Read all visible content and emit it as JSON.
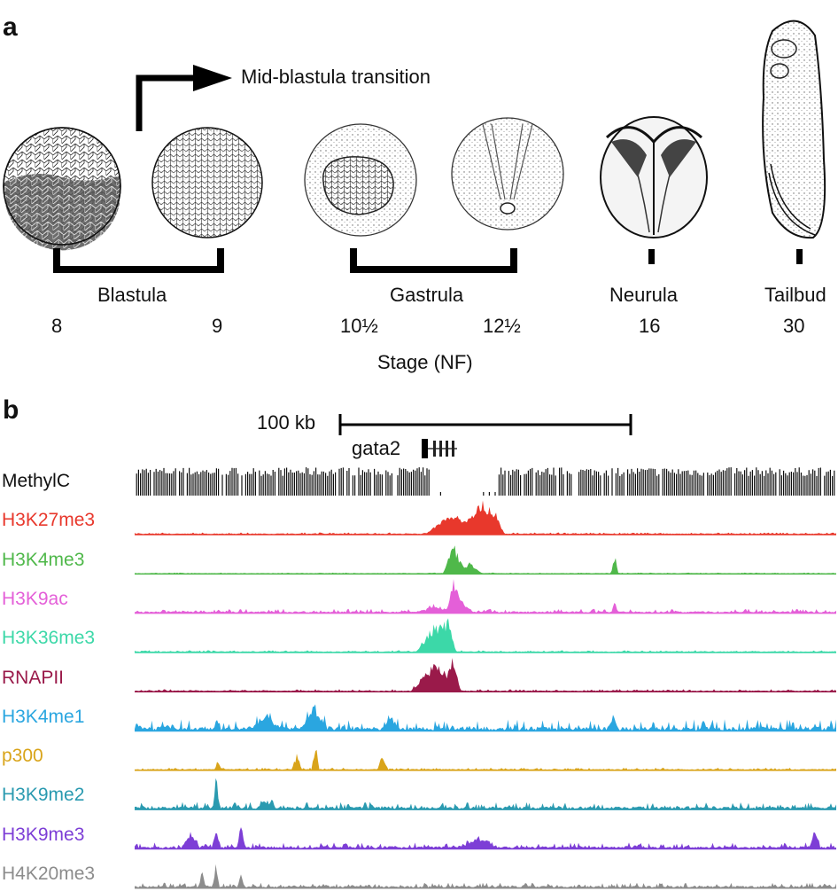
{
  "panel_a": {
    "letter": "a",
    "mbt_label": "Mid-blastula transition",
    "groups": [
      {
        "name": "Blastula"
      },
      {
        "name": "Gastrula"
      },
      {
        "name": "Neurula"
      },
      {
        "name": "Tailbud"
      }
    ],
    "stages": [
      "8",
      "9",
      "10½",
      "12½",
      "16",
      "30"
    ],
    "axis_label": "Stage (NF)"
  },
  "panel_b": {
    "letter": "b",
    "scale_label": "100 kb",
    "gene_label": "gata2",
    "tracks": [
      {
        "name": "MethylC",
        "color": "#111111"
      },
      {
        "name": "H3K27me3",
        "color": "#e8382c"
      },
      {
        "name": "H3K4me3",
        "color": "#4fb84a"
      },
      {
        "name": "H3K9ac",
        "color": "#e45fd8"
      },
      {
        "name": "H3K36me3",
        "color": "#3cd8a8"
      },
      {
        "name": "RNAPII",
        "color": "#9a1a4a"
      },
      {
        "name": "H3K4me1",
        "color": "#2aa6e0"
      },
      {
        "name": "p300",
        "color": "#d9a41a"
      },
      {
        "name": "H3K9me2",
        "color": "#2a9ab0"
      },
      {
        "name": "H3K9me3",
        "color": "#7d3ed6"
      },
      {
        "name": "H4K20me3",
        "color": "#8c8c8c"
      }
    ]
  }
}
